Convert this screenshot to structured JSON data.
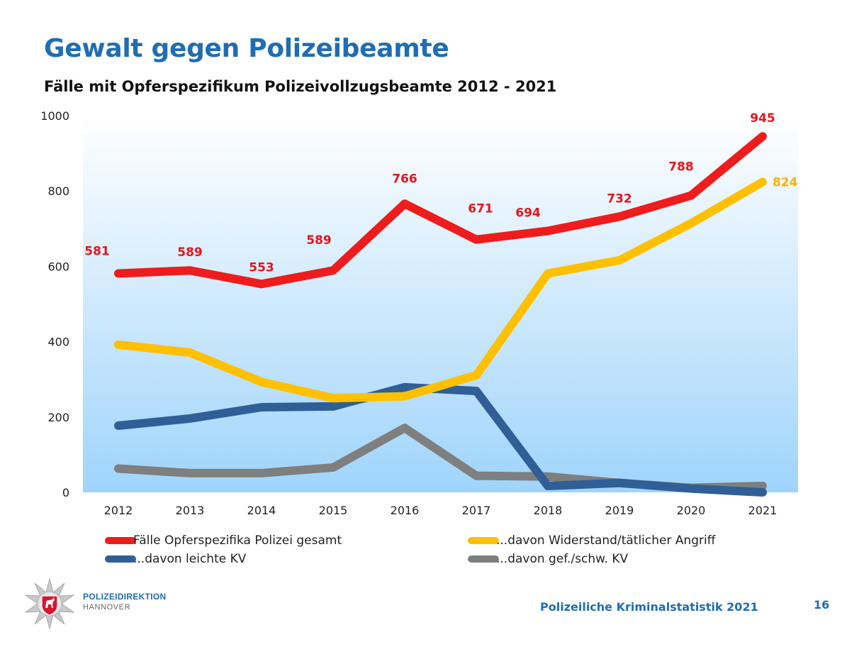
{
  "header": {
    "title": "Gewalt gegen Polizeibeamte",
    "subtitle": "Fälle mit Opferspezifikum Polizeivollzugsbeamte 2012 - 2021"
  },
  "chart_data": {
    "type": "line",
    "x": [
      "2012",
      "2013",
      "2014",
      "2015",
      "2016",
      "2017",
      "2018",
      "2019",
      "2020",
      "2021"
    ],
    "ylim": [
      0,
      1000
    ],
    "yticks": [
      "0",
      "200",
      "400",
      "600",
      "800",
      "1000"
    ],
    "grid": false,
    "background": "gradient white to light blue",
    "legend_position": "bottom",
    "series": [
      {
        "name": "Fälle Opferspezifika Polizei gesamt",
        "color": "#ee1c1c",
        "values": [
          581,
          589,
          553,
          589,
          766,
          671,
          694,
          732,
          788,
          945
        ],
        "labels": [
          "581",
          "589",
          "553",
          "589",
          "766",
          "671",
          "694",
          "732",
          "788",
          "945"
        ]
      },
      {
        "name": "...davon Widerstand/tätlicher Angriff",
        "color": "#ffc000",
        "values": [
          392,
          371,
          293,
          250,
          255,
          311,
          581,
          616,
          714,
          824
        ],
        "labels": [
          "",
          "",
          "",
          "",
          "",
          "",
          "",
          "",
          "",
          "824"
        ]
      },
      {
        "name": "...davon leichte KV",
        "color": "#2f5f96",
        "values": [
          177,
          196,
          226,
          228,
          279,
          269,
          17,
          25,
          10,
          0
        ],
        "labels": [
          "",
          "",
          "",
          "",
          "",
          "",
          "",
          "",
          "",
          ""
        ]
      },
      {
        "name": "...davon gef./schw. KV",
        "color": "#7f7f7f",
        "values": [
          63,
          51,
          51,
          66,
          171,
          44,
          42,
          25,
          12,
          17
        ],
        "labels": [
          "",
          "",
          "",
          "",
          "",
          "",
          "",
          "",
          "",
          ""
        ]
      }
    ]
  },
  "footer": {
    "org_name": "POLIZEIDIREKTION",
    "org_city": "HANNOVER",
    "report": "Polizeiliche Kriminalstatistik 2021",
    "page_number": "16"
  }
}
